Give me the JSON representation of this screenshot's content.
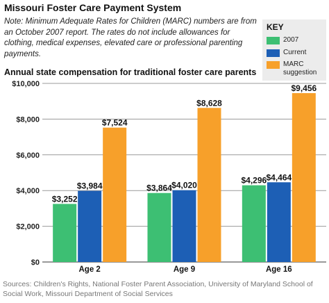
{
  "title": "Missouri Foster Care Payment System",
  "note": "Note: Minimum Adequate Rates for Children (MARC) numbers are from an October 2007 report. The rates do not include allowances for clothing, medical expenses, elevated care or professional parenting payments.",
  "key": {
    "title": "KEY",
    "items": [
      {
        "label": "2007",
        "color": "#3dbf73"
      },
      {
        "label": "Current",
        "color": "#1d5fb5"
      },
      {
        "label": "MARC suggestion",
        "color": "#f7a02a"
      }
    ]
  },
  "chart_data": {
    "type": "bar",
    "title": "Annual state compensation for traditional foster care parents",
    "categories": [
      "Age 2",
      "Age 9",
      "Age 16"
    ],
    "series": [
      {
        "name": "2007",
        "values": [
          3252,
          3864,
          4296
        ],
        "labels": [
          "$3,252",
          "$3,864",
          "$4,296"
        ],
        "color": "#3dbf73"
      },
      {
        "name": "Current",
        "values": [
          3984,
          4020,
          4464
        ],
        "labels": [
          "$3,984",
          "$4,020",
          "$4,464"
        ],
        "color": "#1d5fb5"
      },
      {
        "name": "MARC suggestion",
        "values": [
          7524,
          8628,
          9456
        ],
        "labels": [
          "$7,524",
          "$8,628",
          "$9,456"
        ],
        "color": "#f7a02a"
      }
    ],
    "ylim": [
      0,
      10000
    ],
    "yticks": [
      0,
      2000,
      4000,
      6000,
      8000,
      10000
    ],
    "ytick_labels": [
      "$0",
      "$2,000",
      "$4,000",
      "$6,000",
      "$8,000",
      "$10,000"
    ],
    "grid": true
  },
  "source": "Sources: Children's Rights, National Foster Parent Association, University of Maryland School of Social Work, Missouri Department of Social Services"
}
